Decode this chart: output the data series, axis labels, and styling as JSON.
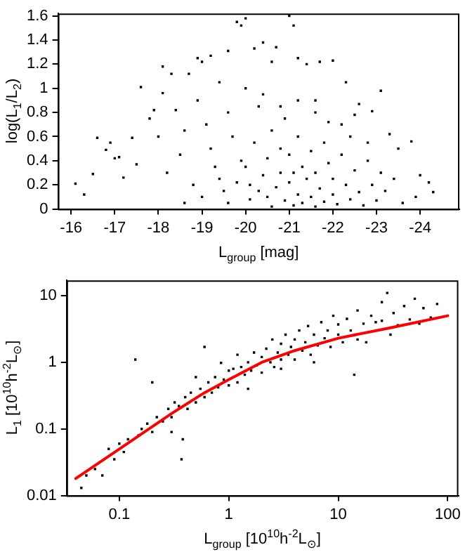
{
  "chart_data": [
    {
      "type": "scatter",
      "xlabel": "L$_{group}$ [mag]",
      "ylabel": "log(L$_{1}$/L$_{2}$)",
      "xlim": [
        -15.7,
        -24.9
      ],
      "xticks": [
        -16,
        -17,
        -18,
        -19,
        -20,
        -21,
        -22,
        -23,
        -24
      ],
      "ylim": [
        0,
        1.62
      ],
      "yticks": [
        0,
        0.2,
        0.4,
        0.6,
        0.8,
        1,
        1.2,
        1.4,
        1.6
      ],
      "grid": false,
      "legend": false,
      "marker": "square",
      "series": [
        {
          "color": "#000000",
          "x": [
            -16.1,
            -16.3,
            -16.5,
            -16.6,
            -16.8,
            -16.9,
            -17.0,
            -17.1,
            -17.2,
            -17.4,
            -17.5,
            -17.6,
            -17.8,
            -17.9,
            -18.0,
            -18.1,
            -18.1,
            -18.2,
            -18.3,
            -18.4,
            -18.5,
            -18.6,
            -18.7,
            -18.8,
            -18.9,
            -18.9,
            -19.0,
            -19.1,
            -19.2,
            -19.2,
            -19.3,
            -19.4,
            -19.5,
            -19.6,
            -19.6,
            -19.7,
            -19.8,
            -19.9,
            -19.9,
            -20.0,
            -20.0,
            -20.1,
            -20.2,
            -20.3,
            -20.4,
            -20.5,
            -20.6,
            -20.7,
            -20.8,
            -21.0,
            -21.1,
            -21.1,
            -21.2,
            -21.4,
            -21.6,
            -21.7,
            -22.0,
            -22.2,
            -22.3,
            -22.6,
            -22.9,
            -23.1,
            -23.3,
            -23.5,
            -23.8,
            -24.0,
            -24.2,
            -24.3,
            -23.9,
            -19.6,
            -19.8,
            -20.0,
            -20.1,
            -20.2,
            -20.3,
            -20.4,
            -20.5,
            -20.6,
            -20.6,
            -20.7,
            -20.8,
            -20.9,
            -20.9,
            -21.0,
            -21.0,
            -21.1,
            -21.2,
            -21.2,
            -21.3,
            -21.3,
            -21.4,
            -21.5,
            -21.5,
            -21.6,
            -21.6,
            -21.7,
            -21.8,
            -21.8,
            -21.9,
            -22.0,
            -22.0,
            -22.1,
            -22.2,
            -22.3,
            -22.4,
            -22.4,
            -22.5,
            -22.6,
            -22.7,
            -22.8,
            -22.9,
            -23.0,
            -23.1,
            -23.2,
            -23.4,
            -23.6,
            -21.2,
            -20.4,
            -22.5,
            -21.9,
            -20.8,
            -19.4,
            -19.0,
            -18.6,
            -22.8,
            -21.6
          ],
          "values": [
            0.21,
            0.12,
            0.29,
            0.59,
            0.49,
            0.55,
            0.42,
            0.43,
            0.26,
            0.59,
            0.37,
            1.01,
            0.75,
            0.82,
            0.6,
            1.18,
            0.96,
            0.3,
            1.12,
            0.82,
            0.45,
            0.65,
            1.12,
            0.2,
            0.9,
            1.25,
            1.22,
            0.7,
            0.5,
            1.27,
            0.35,
            1.05,
            0.15,
            1.31,
            0.8,
            0.6,
            1.55,
            1.52,
            0.4,
            1.0,
            1.58,
            0.2,
            1.33,
            0.85,
            1.38,
            0.1,
            1.22,
            1.34,
            0.5,
            1.6,
            1.52,
            0.3,
            1.25,
            1.2,
            0.9,
            1.22,
            1.23,
            0.7,
            1.05,
            0.87,
            0.81,
            0.98,
            0.62,
            0.5,
            0.56,
            0.28,
            0.22,
            0.14,
            0.1,
            0.05,
            0.22,
            0.35,
            0.08,
            0.55,
            0.15,
            0.28,
            0.42,
            0.02,
            0.65,
            0.18,
            0.3,
            0.07,
            0.75,
            0.22,
            0.45,
            0.03,
            0.12,
            0.6,
            0.35,
            0.05,
            0.25,
            0.48,
            0.1,
            0.02,
            0.3,
            0.17,
            0.55,
            0.06,
            0.38,
            0.12,
            0.25,
            0.04,
            0.45,
            0.2,
            0.08,
            0.6,
            0.32,
            0.14,
            0.03,
            0.4,
            0.2,
            0.07,
            0.3,
            0.15,
            0.25,
            0.05,
            0.9,
            0.95,
            0.78,
            0.72,
            0.85,
            0.25,
            0.1,
            0.05,
            0.55,
            0.8
          ]
        }
      ]
    },
    {
      "type": "scatter",
      "xlabel": "L$_{group}$ [10$^{10}$h$^{-2}$L$_{⊙}$]",
      "ylabel": "L$_{1}$ [10$^{10}$h$^{-2}$L$_{⊙}$]",
      "log": "xy",
      "xlim": [
        0.033,
        125
      ],
      "xticks": [
        0.1,
        1,
        10,
        100
      ],
      "ylim": [
        0.01,
        17
      ],
      "yticks": [
        0.01,
        0.1,
        1,
        10
      ],
      "grid": false,
      "legend": false,
      "marker": "square",
      "series": [
        {
          "color": "#000000",
          "x": [
            0.045,
            0.05,
            0.06,
            0.07,
            0.08,
            0.09,
            0.1,
            0.11,
            0.12,
            0.14,
            0.15,
            0.16,
            0.18,
            0.2,
            0.2,
            0.22,
            0.25,
            0.28,
            0.3,
            0.32,
            0.35,
            0.37,
            0.38,
            0.4,
            0.42,
            0.45,
            0.5,
            0.55,
            0.6,
            0.6,
            0.65,
            0.7,
            0.75,
            0.8,
            0.85,
            0.9,
            1.0,
            1.0,
            1.1,
            1.2,
            1.2,
            1.3,
            1.4,
            1.5,
            1.6,
            1.7,
            1.8,
            2.0,
            2.0,
            2.2,
            2.4,
            2.5,
            2.6,
            2.8,
            3.0,
            3.0,
            3.3,
            3.5,
            3.7,
            4.0,
            4.0,
            4.4,
            4.7,
            5.0,
            5.3,
            5.6,
            6.0,
            6.5,
            7.0,
            7.5,
            8.0,
            8.5,
            9.0,
            10,
            10,
            11,
            12,
            13,
            14,
            15,
            15,
            17,
            18,
            20,
            22,
            25,
            28,
            30,
            32,
            35,
            40,
            45,
            50,
            55,
            60,
            70,
            80,
            25,
            0.3,
            0.5,
            1.5,
            3.0,
            6
          ],
          "values": [
            0.013,
            0.02,
            0.025,
            0.02,
            0.05,
            0.035,
            0.06,
            0.045,
            0.07,
            1.1,
            0.08,
            0.1,
            0.12,
            0.5,
            0.09,
            0.15,
            0.13,
            0.2,
            0.15,
            0.25,
            0.22,
            0.035,
            0.07,
            0.3,
            0.2,
            0.35,
            0.25,
            0.4,
            1.7,
            0.3,
            0.5,
            0.35,
            0.6,
            0.42,
            0.98,
            0.55,
            0.45,
            0.75,
            0.8,
            1.3,
            0.5,
            0.85,
            0.65,
            1.0,
            0.75,
            1.4,
            0.9,
            1.2,
            0.7,
            1.6,
            1.0,
            2.2,
            0.85,
            1.4,
            1.9,
            1.1,
            2.6,
            1.3,
            1.7,
            2.2,
            1.1,
            3.0,
            1.5,
            2.0,
            3.5,
            1.3,
            2.6,
            1.8,
            4.0,
            2.3,
            3.0,
            1.7,
            5.0,
            2.6,
            3.7,
            2.0,
            4.5,
            3.0,
            0.65,
            6.0,
            2.2,
            3.8,
            2.0,
            5.0,
            4.0,
            4.2,
            11,
            2.6,
            5.5,
            3.6,
            7,
            4.4,
            9,
            3.8,
            6.5,
            4.7,
            7.5,
            8,
            0.09,
            0.6,
            0.4,
            0.8,
            1.0
          ]
        },
        {
          "type": "line",
          "color": "#ff0000",
          "marker": "none",
          "x": [
            0.04,
            0.1,
            0.3,
            0.6,
            1,
            2,
            4,
            10,
            30,
            100
          ],
          "values": [
            0.018,
            0.05,
            0.17,
            0.35,
            0.55,
            1.0,
            1.5,
            2.3,
            3.3,
            5
          ]
        }
      ]
    }
  ]
}
